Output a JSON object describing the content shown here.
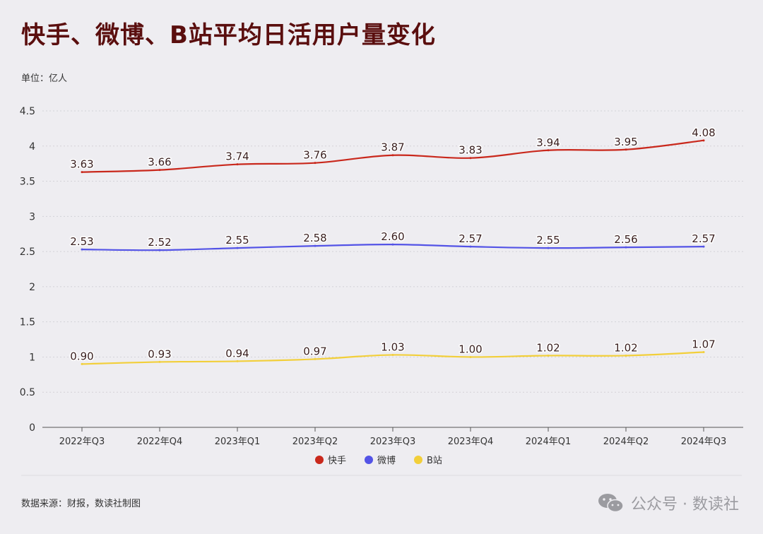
{
  "title": "快手、微博、B站平均日活用户量变化",
  "unit_label": "单位：亿人",
  "source_label": "数据来源：财报，数读社制图",
  "watermark": {
    "text": "公众号 · 数读社",
    "icon": "wechat-icon"
  },
  "colors": {
    "background": "#eeedf1",
    "title": "#5a0e0e",
    "grid": "#d3d2d8",
    "axis": "#555555"
  },
  "chart_data": {
    "type": "line",
    "title": "快手、微博、B站平均日活用户量变化",
    "ylabel": "单位：亿人",
    "xlabel": "",
    "categories": [
      "2022年Q3",
      "2022年Q4",
      "2023年Q1",
      "2023年Q2",
      "2023年Q3",
      "2023年Q4",
      "2024年Q1",
      "2024年Q2",
      "2024年Q3"
    ],
    "ylim": [
      0,
      4.5
    ],
    "yticks": [
      "0",
      "0.5",
      "1",
      "1.5",
      "2",
      "2.5",
      "3",
      "3.5",
      "4",
      "4.5"
    ],
    "grid": "horizontal dotted",
    "legend_position": "bottom",
    "series": [
      {
        "name": "快手",
        "color": "#c9281c",
        "values": [
          3.63,
          3.66,
          3.74,
          3.76,
          3.87,
          3.83,
          3.94,
          3.95,
          4.08
        ],
        "labels": [
          "3.63",
          "3.66",
          "3.74",
          "3.76",
          "3.87",
          "3.83",
          "3.94",
          "3.95",
          "4.08"
        ]
      },
      {
        "name": "微博",
        "color": "#5353e6",
        "values": [
          2.53,
          2.52,
          2.55,
          2.58,
          2.6,
          2.57,
          2.55,
          2.56,
          2.57
        ],
        "labels": [
          "2.53",
          "2.52",
          "2.55",
          "2.58",
          "2.60",
          "2.57",
          "2.55",
          "2.56",
          "2.57"
        ]
      },
      {
        "name": "B站",
        "color": "#f2cf3a",
        "values": [
          0.9,
          0.93,
          0.94,
          0.97,
          1.03,
          1.0,
          1.02,
          1.02,
          1.07
        ],
        "labels": [
          "0.90",
          "0.93",
          "0.94",
          "0.97",
          "1.03",
          "1.00",
          "1.02",
          "1.02",
          "1.07"
        ]
      }
    ]
  }
}
